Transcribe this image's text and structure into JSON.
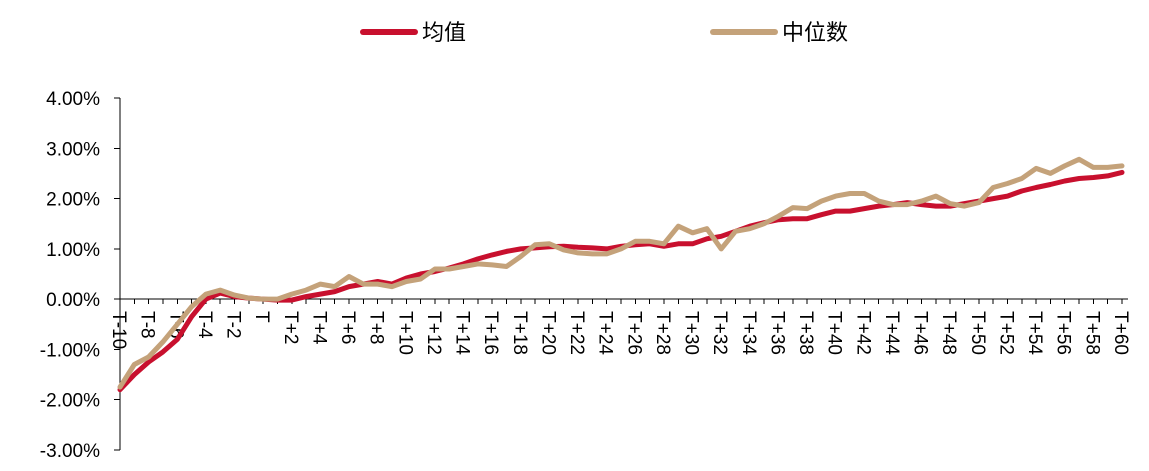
{
  "chart_data": {
    "type": "line",
    "title": "",
    "xlabel": "",
    "ylabel": "",
    "ylim": [
      -3,
      4
    ],
    "yticks": [
      -3,
      -2,
      -1,
      0,
      1,
      2,
      3,
      4
    ],
    "ytick_labels": [
      "-3.00%",
      "-2.00%",
      "-1.00%",
      "0.00%",
      "1.00%",
      "2.00%",
      "3.00%",
      "4.00%"
    ],
    "grid": false,
    "legend_position": "top",
    "x": [
      "T-10",
      "T-9",
      "T-8",
      "T-7",
      "T-6",
      "T-5",
      "T-4",
      "T-3",
      "T-2",
      "T-1",
      "T",
      "T+1",
      "T+2",
      "T+3",
      "T+4",
      "T+5",
      "T+6",
      "T+7",
      "T+8",
      "T+9",
      "T+10",
      "T+11",
      "T+12",
      "T+13",
      "T+14",
      "T+15",
      "T+16",
      "T+17",
      "T+18",
      "T+19",
      "T+20",
      "T+21",
      "T+22",
      "T+23",
      "T+24",
      "T+25",
      "T+26",
      "T+27",
      "T+28",
      "T+29",
      "T+30",
      "T+31",
      "T+32",
      "T+33",
      "T+34",
      "T+35",
      "T+36",
      "T+37",
      "T+38",
      "T+39",
      "T+40",
      "T+41",
      "T+42",
      "T+43",
      "T+44",
      "T+45",
      "T+46",
      "T+47",
      "T+48",
      "T+49",
      "T+50",
      "T+51",
      "T+52",
      "T+53",
      "T+54",
      "T+55",
      "T+56",
      "T+57",
      "T+58",
      "T+59",
      "T+60"
    ],
    "xtick_labels": [
      "T-10",
      "",
      "T-8",
      "",
      "T-6",
      "",
      "T-4",
      "",
      "T-2",
      "",
      "T",
      "",
      "T+2",
      "",
      "T+4",
      "",
      "T+6",
      "",
      "T+8",
      "",
      "T+10",
      "",
      "T+12",
      "",
      "T+14",
      "",
      "T+16",
      "",
      "T+18",
      "",
      "T+20",
      "",
      "T+22",
      "",
      "T+24",
      "",
      "T+26",
      "",
      "T+28",
      "",
      "T+30",
      "",
      "T+32",
      "",
      "T+34",
      "",
      "T+36",
      "",
      "T+38",
      "",
      "T+40",
      "",
      "T+42",
      "",
      "T+44",
      "",
      "T+46",
      "",
      "T+48",
      "",
      "T+50",
      "",
      "T+52",
      "",
      "T+54",
      "",
      "T+56",
      "",
      "T+58",
      "",
      "T+60"
    ],
    "series": [
      {
        "name": "均值",
        "color": "#C8102E",
        "values": [
          -1.8,
          -1.5,
          -1.25,
          -1.05,
          -0.8,
          -0.35,
          0.0,
          0.12,
          0.05,
          0.02,
          0.0,
          -0.02,
          -0.02,
          0.05,
          0.1,
          0.15,
          0.25,
          0.3,
          0.35,
          0.3,
          0.42,
          0.5,
          0.55,
          0.62,
          0.7,
          0.8,
          0.88,
          0.95,
          1.0,
          1.02,
          1.04,
          1.05,
          1.03,
          1.02,
          1.0,
          1.05,
          1.08,
          1.1,
          1.05,
          1.1,
          1.1,
          1.2,
          1.25,
          1.35,
          1.45,
          1.52,
          1.58,
          1.6,
          1.6,
          1.68,
          1.75,
          1.75,
          1.8,
          1.85,
          1.88,
          1.92,
          1.88,
          1.85,
          1.85,
          1.9,
          1.95,
          2.0,
          2.05,
          2.15,
          2.22,
          2.28,
          2.35,
          2.4,
          2.42,
          2.45,
          2.52
        ]
      },
      {
        "name": "中位数",
        "color": "#C4A27A",
        "values": [
          -1.75,
          -1.3,
          -1.15,
          -0.85,
          -0.5,
          -0.15,
          0.1,
          0.18,
          0.08,
          0.02,
          0.0,
          0.0,
          0.1,
          0.18,
          0.3,
          0.25,
          0.45,
          0.3,
          0.3,
          0.25,
          0.35,
          0.4,
          0.6,
          0.6,
          0.65,
          0.7,
          0.68,
          0.65,
          0.85,
          1.08,
          1.1,
          0.98,
          0.92,
          0.9,
          0.9,
          1.0,
          1.15,
          1.15,
          1.1,
          1.45,
          1.32,
          1.4,
          1.0,
          1.35,
          1.4,
          1.5,
          1.65,
          1.82,
          1.8,
          1.95,
          2.05,
          2.1,
          2.1,
          1.95,
          1.88,
          1.88,
          1.95,
          2.05,
          1.9,
          1.85,
          1.92,
          2.22,
          2.3,
          2.4,
          2.6,
          2.5,
          2.65,
          2.78,
          2.62,
          2.62,
          2.65
        ]
      }
    ]
  }
}
